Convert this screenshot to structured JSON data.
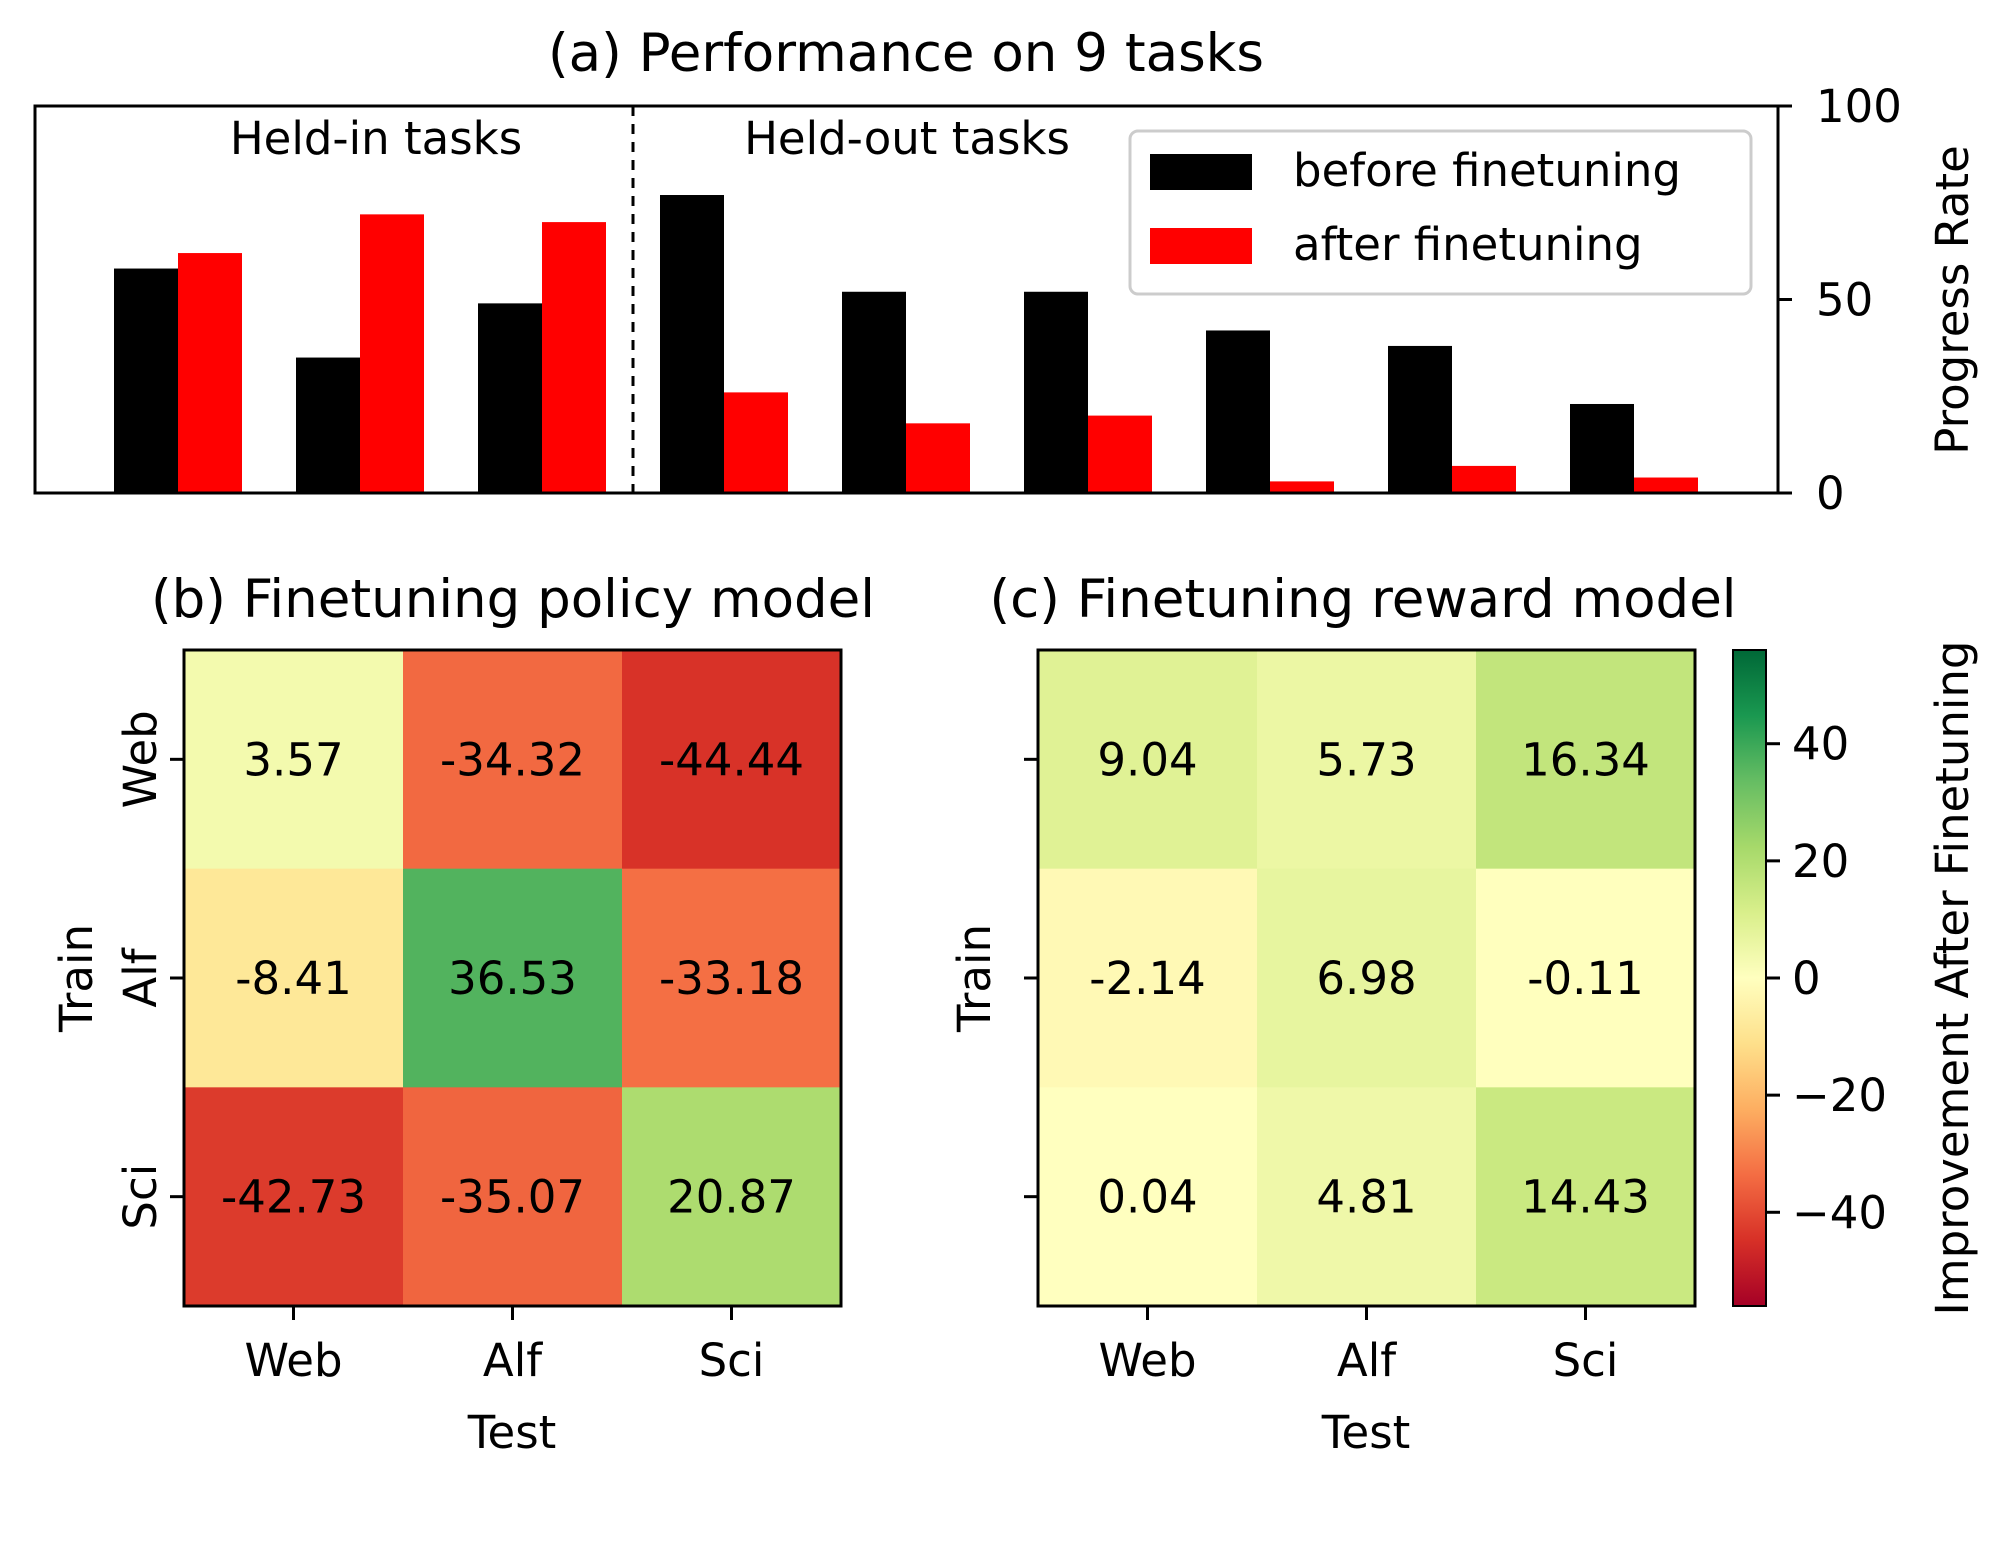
{
  "chart_data": [
    {
      "type": "bar",
      "title": "(a) Performance on 9 tasks",
      "ylabel": "Progress Rate",
      "ylim": [
        0,
        100
      ],
      "yticks": [
        "0",
        "50",
        "100"
      ],
      "yaxis_side": "right",
      "x_tick_labels_shown": false,
      "group_labels": [
        "Held-in tasks",
        "Held-out tasks"
      ],
      "divider_after_index": 2,
      "legend_position": "top-right",
      "series": [
        {
          "name": "before finetuning",
          "color": "#000000",
          "values": [
            58,
            35,
            49,
            77,
            52,
            52,
            42,
            38,
            23
          ]
        },
        {
          "name": "after finetuning",
          "color": "#ff0000",
          "values": [
            62,
            72,
            70,
            26,
            18,
            20,
            3,
            7,
            4
          ]
        }
      ]
    },
    {
      "type": "heatmap",
      "title": "(b) Finetuning policy model",
      "xlabel": "Test",
      "ylabel": "Train",
      "x_categories": [
        "Web",
        "Alf",
        "Sci"
      ],
      "y_categories": [
        "Web",
        "Alf",
        "Sci"
      ],
      "values": [
        [
          3.57,
          -34.32,
          -44.44
        ],
        [
          -8.41,
          36.53,
          -33.18
        ],
        [
          -42.73,
          -35.07,
          20.87
        ]
      ],
      "value_labels": [
        [
          "3.57",
          "-34.32",
          "-44.44"
        ],
        [
          "-8.41",
          "36.53",
          "-33.18"
        ],
        [
          "-42.73",
          "-35.07",
          "20.87"
        ]
      ]
    },
    {
      "type": "heatmap",
      "title": "(c) Finetuning reward model",
      "xlabel": "Test",
      "ylabel": "Train",
      "x_categories": [
        "Web",
        "Alf",
        "Sci"
      ],
      "y_categories_shown": false,
      "values": [
        [
          9.04,
          5.73,
          16.34
        ],
        [
          -2.14,
          6.98,
          -0.11
        ],
        [
          0.04,
          4.81,
          14.43
        ]
      ],
      "value_labels": [
        [
          "9.04",
          "5.73",
          "16.34"
        ],
        [
          "-2.14",
          "6.98",
          "-0.11"
        ],
        [
          "0.04",
          "4.81",
          "14.43"
        ]
      ]
    }
  ],
  "colorbar": {
    "label": "Improvement After Finetuning",
    "range": [
      -56,
      56
    ],
    "colormap": "RdYlGn",
    "ticks": [
      -40,
      -20,
      0,
      20,
      40
    ],
    "tick_labels": [
      "−40",
      "−20",
      "0",
      "20",
      "40"
    ]
  }
}
